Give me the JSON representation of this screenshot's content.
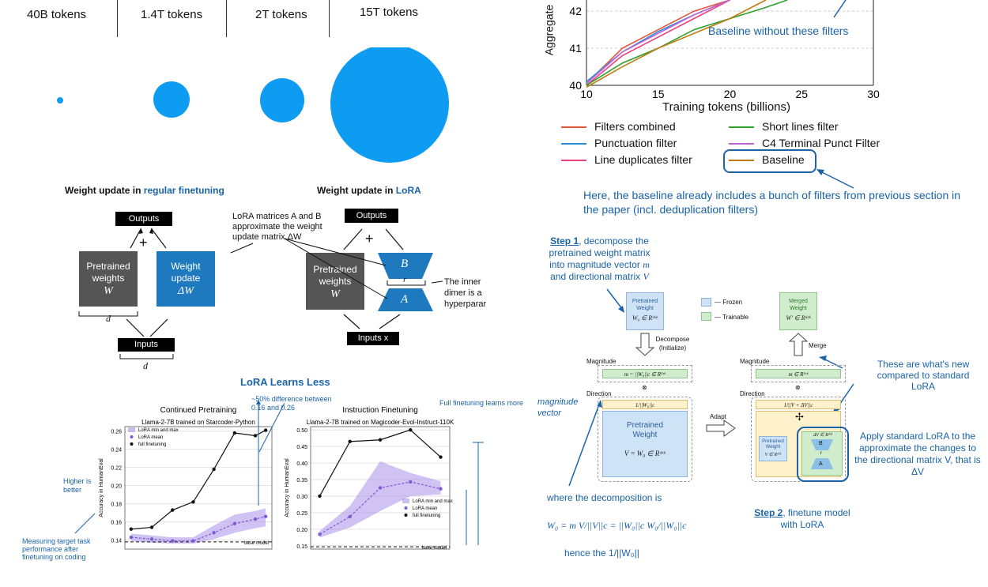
{
  "tokens": {
    "labels": [
      "40B tokens",
      "1.4T tokens",
      "2T tokens",
      "15T tokens"
    ]
  },
  "filters_chart": {
    "ylabel": "Aggregate",
    "xlabel": "Training tokens (billions)",
    "x_ticks": [
      "10",
      "15",
      "20",
      "25",
      "30"
    ],
    "y_ticks": [
      "40",
      "41",
      "42"
    ],
    "annotation_baseline": "Baseline without these filters",
    "legend": [
      "Filters combined",
      "Punctuation filter",
      "Line duplicates filter",
      "Short lines filter",
      "C4 Terminal Punct Filter",
      "Baseline"
    ],
    "legend_note": "Here, the baseline already includes a bunch of filters from previous section in the paper (incl. deduplication filters)"
  },
  "chart_data": [
    {
      "type": "line",
      "xlabel": "Training tokens (billions)",
      "ylabel": "Aggregate",
      "xlim": [
        10,
        30
      ],
      "ylim": [
        40,
        42.3
      ],
      "series": [
        {
          "name": "Filters combined",
          "color": "#e0553a",
          "x": [
            10,
            12.5,
            15,
            17.5,
            20
          ],
          "y": [
            40.05,
            41.0,
            41.5,
            42.0,
            42.35
          ]
        },
        {
          "name": "Punctuation filter",
          "color": "#2c8fd6",
          "x": [
            10,
            12.5,
            15,
            17.5,
            20
          ],
          "y": [
            40.1,
            40.9,
            41.45,
            41.9,
            42.3
          ]
        },
        {
          "name": "Line duplicates filter",
          "color": "#e8407e",
          "x": [
            10,
            12.5,
            15,
            17.5,
            20
          ],
          "y": [
            40.0,
            40.8,
            41.3,
            41.8,
            42.3
          ]
        },
        {
          "name": "Short lines filter",
          "color": "#2ca02c",
          "x": [
            10,
            12.5,
            15,
            17.5,
            20,
            22.5,
            24
          ],
          "y": [
            40.0,
            40.6,
            41.0,
            41.5,
            41.8,
            42.1,
            42.3
          ]
        },
        {
          "name": "C4 Terminal Punct Filter",
          "color": "#c065d6",
          "x": [
            10,
            12.5,
            15,
            17.5,
            20
          ],
          "y": [
            40.05,
            40.9,
            41.4,
            41.9,
            42.3
          ]
        },
        {
          "name": "Baseline",
          "color": "#c07a12",
          "x": [
            10,
            12.5,
            15,
            17.5,
            20,
            22.5
          ],
          "y": [
            39.95,
            40.5,
            41.0,
            41.4,
            41.8,
            42.3
          ]
        }
      ]
    },
    {
      "type": "line",
      "title": "Continued Pretraining",
      "subtitle": "Llama-2-7B trained on Starcoder-Python",
      "ylabel": "Accuracy in HumanEval",
      "ylim": [
        0.13,
        0.265
      ],
      "y_ticks": [
        "0.26",
        "0.24",
        "0.22",
        "0.20",
        "0.18",
        "0.16",
        "0.14"
      ],
      "series": [
        {
          "name": "full finetuning",
          "color": "#111111",
          "x": [
            1,
            2,
            3,
            4,
            5,
            6,
            7,
            7.5
          ],
          "y": [
            0.152,
            0.154,
            0.173,
            0.182,
            0.218,
            0.258,
            0.255,
            0.261
          ]
        },
        {
          "name": "LoRA mean",
          "color": "#7b5bd6",
          "x": [
            1,
            2,
            3,
            4,
            5,
            6,
            7,
            7.5
          ],
          "y": [
            0.143,
            0.141,
            0.139,
            0.139,
            0.148,
            0.158,
            0.163,
            0.166
          ]
        },
        {
          "name": "LoRA min and max",
          "color": "#a990e8",
          "x": [
            1,
            2,
            3,
            4,
            5,
            6,
            7,
            7.5
          ],
          "y_min": [
            0.139,
            0.137,
            0.136,
            0.136,
            0.141,
            0.148,
            0.153,
            0.155
          ],
          "y_max": [
            0.147,
            0.145,
            0.143,
            0.143,
            0.156,
            0.168,
            0.172,
            0.175
          ]
        }
      ],
      "baseline_label": "base model",
      "baseline_value": 0.138
    },
    {
      "type": "line",
      "title": "Instruction Finetuning",
      "subtitle": "Llama-2-7B trained on Magicoder-Evol-Instruct-110K",
      "ylabel": "Accuracy in HumanEval",
      "ylim": [
        0.14,
        0.51
      ],
      "y_ticks": [
        "0.50",
        "0.45",
        "0.40",
        "0.35",
        "0.30",
        "0.25",
        "0.20",
        "0.15"
      ],
      "series": [
        {
          "name": "full finetuning",
          "color": "#111111",
          "x": [
            1,
            2,
            3,
            4,
            5
          ],
          "y": [
            0.3,
            0.465,
            0.47,
            0.5,
            0.418
          ]
        },
        {
          "name": "LoRA mean",
          "color": "#7b5bd6",
          "x": [
            1,
            2,
            3,
            4,
            5
          ],
          "y": [
            0.185,
            0.238,
            0.325,
            0.343,
            0.322
          ]
        },
        {
          "name": "LoRA min and max",
          "color": "#a990e8",
          "x": [
            1,
            2,
            3,
            4,
            5
          ],
          "y_min": [
            0.175,
            0.205,
            0.255,
            0.3,
            0.305
          ],
          "y_max": [
            0.195,
            0.27,
            0.405,
            0.37,
            0.345
          ]
        }
      ],
      "baseline_label": "base model",
      "baseline_value": 0.147
    }
  ],
  "lora": {
    "regular_title_prefix": "Weight update in ",
    "regular_title_em": "regular finetuning",
    "lora_title_prefix": "Weight update in ",
    "lora_title_em": "LoRA",
    "outputs": "Outputs",
    "inputs": "Inputs",
    "inputs_x": "Inputs x",
    "plus": "+",
    "pretrained": "Pretrained weights",
    "W": "W",
    "weight_update": "Weight update",
    "delta_w": "ΔW",
    "d": "d",
    "r": "r",
    "A": "A",
    "B": "B",
    "matrices_note": "LoRA matrices A and B approximate the weight update matrix ΔW",
    "inner_note": "The inner dimer is a hyperparar"
  },
  "learns_less": {
    "title": "LoRA Learns Less",
    "diff_note": "~50% difference between 0.16 and 0.26",
    "full_more": "Full finetuning learns more",
    "higher_better": "Higher is better",
    "measuring": "Measuring target task performance after finetuning on coding"
  },
  "dora": {
    "step1": "Step 1, decompose the pretrained weight matrix into magnitude vector m and directional matrix V",
    "step1_bold": "Step 1",
    "pretrained_weight": "Pretrained Weight",
    "w0": "W₀ ∈ Rᵈˣᵏ",
    "frozen": "Frozen",
    "trainable": "Trainable",
    "merged_weight": "Merged Weight",
    "w_prime": "W′ ∈ Rᵈˣᵏ",
    "decompose": "Decompose (Initialize)",
    "merge": "Merge",
    "magnitude": "Magnitude",
    "direction": "Direction",
    "m_eq": "m = ||W₀||c ∈ R¹ˣᵏ",
    "inv_norm": "1/||W₀||c",
    "inv_norm2": "1/||V + ΔV||c",
    "V_eq": "V = W₀ ∈ Rᵈˣᵏ",
    "adapt": "Adapt",
    "new_note": "These are what's new compared to standard LoRA",
    "apply_note": "Apply standard LoRA to the approximate the changes to the directional matrix V, that is ΔV",
    "magnitude_vector": "magnitude vector",
    "decomposition_is": "where the decomposition is",
    "formula": "W₀ = m V/||V||c = ||W₀||c W₀/||W₀||c",
    "hence": "hence the 1/||W₀||",
    "step2": "Step 2, finetune model with LoRA",
    "step2_bold": "Step 2",
    "dV_label": "ΔV ∈ Rᵈˣᵏ",
    "v_small": "V ∈ Rᵈˣᵏ",
    "mag_small": "m ∈ R¹ˣᵏ",
    "pretrained_small": "Pretrained Weight",
    "B": "B",
    "A": "A",
    "r": "r"
  },
  "colors": {
    "circle": "#0d9cf2",
    "accent": "#1a63a8",
    "dark_box": "#555555",
    "update_box": "#1f79bf",
    "frozen": "#cfe3f7",
    "trainable": "#cfeccc",
    "lora_purple": "#7b5bd6"
  }
}
